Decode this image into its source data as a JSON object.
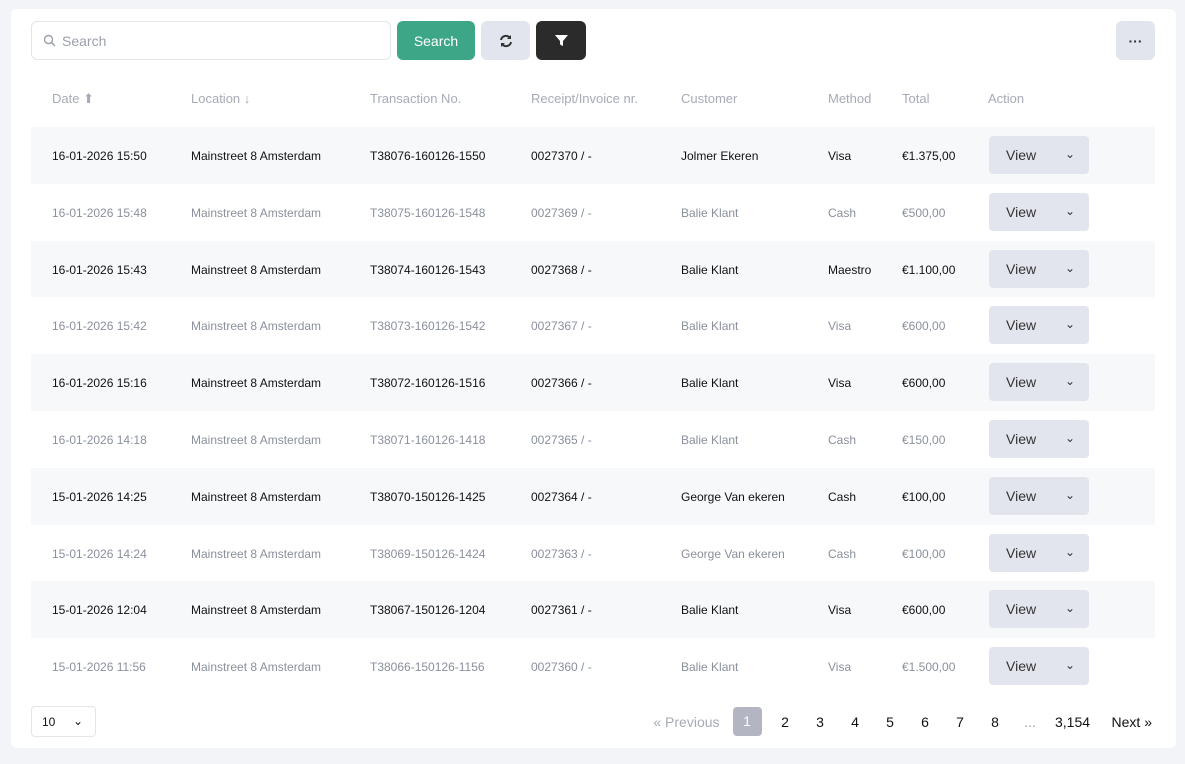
{
  "toolbar": {
    "search_placeholder": "Search",
    "search_label": "Search",
    "search_icon": "search-icon",
    "refresh_icon": "refresh-icon",
    "filter_icon": "filter-icon",
    "more_icon": "more-icon",
    "more_label": "···"
  },
  "colors": {
    "primary": "#3da687",
    "dark": "#2b2b2b",
    "muted": "#e3e5ee"
  },
  "columns": [
    "Date ⬆",
    "Location ↓",
    "Transaction No.",
    "Receipt/Invoice nr.",
    "Customer",
    "Method",
    "Total",
    "Action"
  ],
  "rows": [
    [
      "16-01-2026 15:50",
      "Mainstreet 8 Amsterdam",
      "T38076-160126-1550",
      "0027370 / -",
      "Jolmer Ekeren",
      "Visa",
      "€1.375,00"
    ],
    [
      "16-01-2026 15:48",
      "Mainstreet 8 Amsterdam",
      "T38075-160126-1548",
      "0027369 / -",
      "Balie Klant",
      "Cash",
      "€500,00"
    ],
    [
      "16-01-2026 15:43",
      "Mainstreet 8 Amsterdam",
      "T38074-160126-1543",
      "0027368 / -",
      "Balie Klant",
      "Maestro",
      "€1.100,00"
    ],
    [
      "16-01-2026 15:42",
      "Mainstreet 8 Amsterdam",
      "T38073-160126-1542",
      "0027367 / -",
      "Balie Klant",
      "Visa",
      "€600,00"
    ],
    [
      "16-01-2026 15:16",
      "Mainstreet 8 Amsterdam",
      "T38072-160126-1516",
      "0027366 / -",
      "Balie Klant",
      "Visa",
      "€600,00"
    ],
    [
      "16-01-2026 14:18",
      "Mainstreet 8 Amsterdam",
      "T38071-160126-1418",
      "0027365 / -",
      "Balie Klant",
      "Cash",
      "€150,00"
    ],
    [
      "15-01-2026 14:25",
      "Mainstreet 8 Amsterdam",
      "T38070-150126-1425",
      "0027364 / -",
      "George Van ekeren",
      "Cash",
      "€100,00"
    ],
    [
      "15-01-2026 14:24",
      "Mainstreet 8 Amsterdam",
      "T38069-150126-1424",
      "0027363 / -",
      "George Van ekeren",
      "Cash",
      "€100,00"
    ],
    [
      "15-01-2026 12:04",
      "Mainstreet 8 Amsterdam",
      "T38067-150126-1204",
      "0027361 / -",
      "Balie Klant",
      "Visa",
      "€600,00"
    ],
    [
      "15-01-2026 11:56",
      "Mainstreet 8 Amsterdam",
      "T38066-150126-1156",
      "0027360 / -",
      "Balie Klant",
      "Visa",
      "€1.500,00"
    ]
  ],
  "view_label": "View",
  "page_size": "10",
  "pagination": {
    "previous": "« Previous",
    "next": "Next »",
    "pages": [
      "1",
      "2",
      "3",
      "4",
      "5",
      "6",
      "7",
      "8",
      "...",
      "3,154"
    ],
    "current": "1"
  }
}
